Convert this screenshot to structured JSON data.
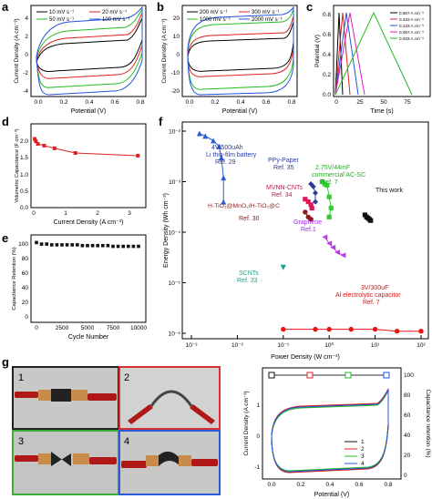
{
  "panels": {
    "a": {
      "letter": "a",
      "xlabel": "Potential (V)",
      "ylabel": "Current Density (A cm⁻³)",
      "xticks": [
        "0.0",
        "0.2",
        "0.4",
        "0.6",
        "0.8"
      ],
      "yticks": [
        "4",
        "2",
        "0",
        "-2",
        "-4"
      ],
      "legend": [
        "10 mV s⁻¹",
        "20 mV s⁻¹",
        "50 mV s⁻¹",
        "100 mV s⁻¹"
      ]
    },
    "b": {
      "letter": "b",
      "xlabel": "Potential (V)",
      "ylabel": "Current Density (A cm⁻³)",
      "xticks": [
        "0.0",
        "0.2",
        "0.4",
        "0.6",
        "0.8"
      ],
      "yticks": [
        "20",
        "10",
        "0",
        "-10",
        "-20"
      ],
      "legend": [
        "200 mV s⁻¹",
        "300 mV s⁻¹",
        "1000 mV s⁻¹",
        "2000 mV s⁻¹"
      ]
    },
    "c": {
      "letter": "c",
      "xlabel": "Time (s)",
      "ylabel": "Potential (V)",
      "xticks": [
        "0",
        "25",
        "50",
        "75"
      ],
      "yticks": [
        "0.8",
        "0.6",
        "0.4",
        "0.2",
        "0.0"
      ],
      "legend": [
        "0.667 A cm⁻³",
        "0.333 A cm⁻³",
        "0.133 A cm⁻³",
        "0.067 A cm⁻³",
        "0.033 A cm⁻³"
      ]
    },
    "d": {
      "letter": "d",
      "xlabel": "Current Density (A cm⁻³)",
      "ylabel": "Volumetric Capacitance (F cm⁻³)",
      "xticks": [
        "0",
        "1",
        "2",
        "3"
      ],
      "yticks": [
        "2.0",
        "1.5",
        "1.0",
        "0.5",
        "0.0"
      ]
    },
    "e": {
      "letter": "e",
      "xlabel": "Cycle Number",
      "ylabel": "Capacitance Retention (%)",
      "xticks": [
        "0",
        "2500",
        "5000",
        "7500",
        "10000"
      ],
      "yticks": [
        "100",
        "80",
        "60",
        "40",
        "20",
        "0"
      ]
    },
    "f": {
      "letter": "f",
      "xlabel": "Power Density (W cm⁻³)",
      "ylabel": "Energy Density (Wh cm⁻³)"
    },
    "g": {
      "letter": "g",
      "xlabel": "Potential (V)",
      "ylabel": "Current Density (A cm⁻³)",
      "y2label": "Capacitance retention (%)",
      "xticks": [
        "0.0",
        "0.2",
        "0.4",
        "0.6",
        "0.8"
      ],
      "yticks": [
        "1",
        "0",
        "-1"
      ],
      "y2ticks": [
        "100",
        "80",
        "60",
        "40",
        "20",
        "0"
      ],
      "legend": [
        "1",
        "2",
        "3",
        "4"
      ],
      "photos": [
        {
          "label": "1"
        },
        {
          "label": "2"
        },
        {
          "label": "3"
        },
        {
          "label": "4"
        }
      ]
    }
  },
  "ragone_labels": [
    {
      "text": "4V/500uAh",
      "color": "#2a3d9f"
    },
    {
      "text": "Li thin-film battery",
      "color": "#2a3d9f"
    },
    {
      "text": "Ref. 29",
      "color": "#2a3d9f"
    },
    {
      "text": "PPy-Paper",
      "color": "#2a3d9f"
    },
    {
      "text": "Ref. 35",
      "color": "#2a3d9f"
    },
    {
      "text": "2.75V/44mF",
      "color": "#2aa82a"
    },
    {
      "text": "commercial AC-SC",
      "color": "#2aa82a"
    },
    {
      "text": "Ref. 7",
      "color": "#2aa82a"
    },
    {
      "text": "MVNN-CNTs",
      "color": "#c2185b"
    },
    {
      "text": "Ref. 34",
      "color": "#c2185b"
    },
    {
      "text": "H-TiO₂@MnO₂/H-TiO₂@C",
      "color": "#8b1a1a"
    },
    {
      "text": "Ref. 30",
      "color": "#8b1a1a"
    },
    {
      "text": "This work",
      "color": "#111111"
    },
    {
      "text": "Graphene",
      "color": "#9b30d9"
    },
    {
      "text": "Ref.1",
      "color": "#9b30d9"
    },
    {
      "text": "SCNTs",
      "color": "#1aa08a"
    },
    {
      "text": "Ref. 33",
      "color": "#1aa08a"
    },
    {
      "text": "3V/300uF",
      "color": "#dd1111"
    },
    {
      "text": "Al electrolytic capacitor",
      "color": "#dd1111"
    },
    {
      "text": "Ref. 7",
      "color": "#dd1111"
    }
  ],
  "chart_data": [
    {
      "panel": "d",
      "type": "scatter",
      "xlabel": "Current Density (A cm⁻³)",
      "ylabel": "Volumetric Capacitance (F cm⁻³)",
      "xlim": [
        0,
        3.5
      ],
      "ylim": [
        0,
        2.5
      ],
      "color": "#dd2222",
      "series": [
        {
          "x": [
            0.033,
            0.067,
            0.133,
            0.333,
            0.667,
            1.333,
            3.333
          ],
          "y": [
            2.05,
            1.98,
            1.9,
            1.85,
            1.77,
            1.63,
            1.55
          ]
        }
      ]
    },
    {
      "panel": "e",
      "type": "scatter",
      "xlabel": "Cycle Number",
      "ylabel": "Capacitance Retention (%)",
      "xlim": [
        0,
        10000
      ],
      "ylim": [
        0,
        110
      ],
      "color": "#111111",
      "series": [
        {
          "x": [
            0,
            500,
            1000,
            1500,
            2000,
            2500,
            3000,
            3500,
            4000,
            4500,
            5000,
            5500,
            6000,
            6500,
            7000,
            7500,
            8000,
            8500,
            9000,
            9500,
            10000
          ],
          "y": [
            100,
            98,
            98,
            97,
            97,
            97,
            97,
            97,
            97,
            96,
            96,
            96,
            96,
            96,
            96,
            95,
            95,
            95,
            95,
            95,
            95
          ]
        }
      ]
    },
    {
      "panel": "f",
      "type": "scatter",
      "scale": "log",
      "xlim": [
        0.001,
        100
      ],
      "ylim": [
        1e-06,
        0.01
      ],
      "series": [
        {
          "name": "Li thin-film battery",
          "color": "#2a5bd7",
          "marker": "triangle",
          "x": [
            0.0015,
            0.002,
            0.003,
            0.004,
            0.0045,
            0.005,
            0.005
          ],
          "y": [
            0.009,
            0.008,
            0.0065,
            0.005,
            0.003,
            0.0012,
            0.0004
          ]
        },
        {
          "name": "PPy-Paper",
          "color": "#2a3d9f",
          "marker": "diamond",
          "x": [
            0.4,
            0.45,
            0.5,
            0.5
          ],
          "y": [
            0.0009,
            0.0008,
            0.0006,
            0.0004
          ]
        },
        {
          "name": "commercial AC-SC",
          "color": "#33cc33",
          "marker": "square",
          "x": [
            0.7,
            0.8,
            0.9,
            1.0,
            1.1,
            1.0
          ],
          "y": [
            0.001,
            0.0009,
            0.00085,
            0.0005,
            0.0003,
            0.0002
          ]
        },
        {
          "name": "MVNN-CNTs",
          "color": "#e0175a",
          "marker": "square",
          "x": [
            0.3,
            0.35,
            0.4,
            0.42
          ],
          "y": [
            0.00045,
            0.0004,
            0.00035,
            0.0003
          ]
        },
        {
          "name": "H-TiO2@MnO2/H-TiO2@C",
          "color": "#8b1a1a",
          "marker": "circle",
          "x": [
            0.3,
            0.35,
            0.4
          ],
          "y": [
            0.00025,
            0.0002,
            0.00018
          ]
        },
        {
          "name": "This work",
          "color": "#111111",
          "marker": "square",
          "x": [
            6,
            6.5,
            7,
            7.5,
            8
          ],
          "y": [
            0.00022,
            0.0002,
            0.00019,
            0.00018,
            0.00017
          ]
        },
        {
          "name": "Graphene",
          "color": "#b040e0",
          "marker": "triangle-left",
          "x": [
            0.8,
            1.0,
            1.2,
            1.5,
            2.0
          ],
          "y": [
            8e-05,
            6e-05,
            5e-05,
            4e-05,
            3.5e-05
          ]
        },
        {
          "name": "SCNTs",
          "color": "#1aa08a",
          "marker": "triangle-down",
          "x": [
            0.1
          ],
          "y": [
            2e-05
          ]
        },
        {
          "name": "Al electrolytic capacitor",
          "color": "#ee1111",
          "marker": "circle",
          "x": [
            0.1,
            0.5,
            1,
            3,
            10,
            30,
            100
          ],
          "y": [
            1.2e-06,
            1.2e-06,
            1.2e-06,
            1.2e-06,
            1.2e-06,
            1.1e-06,
            1.1e-06
          ]
        }
      ]
    },
    {
      "panel": "g",
      "type": "scatter",
      "series": [
        {
          "name": "Capacitance retention",
          "x": [
            1,
            2,
            3,
            4
          ],
          "y": [
            100,
            100,
            100,
            100
          ]
        }
      ]
    }
  ],
  "colors": {
    "series1": "#111111",
    "series2": "#e02020",
    "series3": "#22bb22",
    "series4": "#2255dd"
  }
}
